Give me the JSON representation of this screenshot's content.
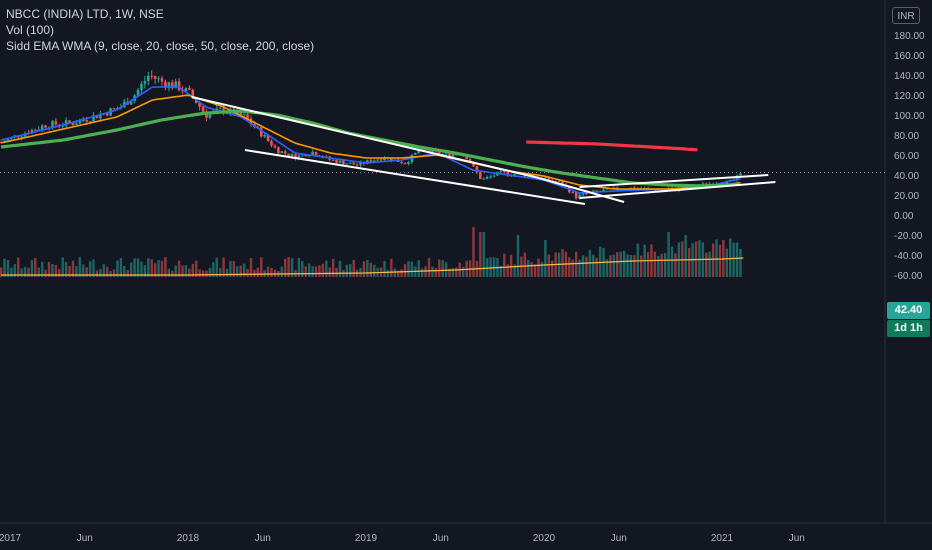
{
  "legend": {
    "symbol_line": "NBCC (INDIA) LTD, 1W, NSE",
    "vol_line": "Vol (100)",
    "indicator_line": "Sidd EMA WMA (9, close, 20, close, 50, close, 200, close)"
  },
  "currency_button": "INR",
  "last_price_label": "42.40",
  "timeframe_badge": "1d 1h",
  "colors": {
    "background": "#131722",
    "up": "#26a69a",
    "down": "#ef5350",
    "ema_fast": "#2962ff",
    "ema_mid": "#ff9800",
    "ema_slow": "#4caf50",
    "wma_long": "#f23645",
    "trendline": "#ffffff",
    "volume_ma": "#ffb74d"
  },
  "chart_data": {
    "type": "candlestick",
    "title": "NBCC (INDIA) LTD, 1W, NSE",
    "y_ticks": [
      180,
      160,
      140,
      120,
      100,
      80,
      60,
      40,
      20,
      0,
      -20,
      -40,
      -60
    ],
    "y_tick_labels": [
      "180.00",
      "160.00",
      "140.00",
      "120.00",
      "100.00",
      "80.00",
      "60.00",
      "40.00",
      "20.00",
      "0.00",
      "-20.00",
      "-40.00",
      "-60.00"
    ],
    "ylim": [
      -65,
      190
    ],
    "x_axis_labels": [
      "2017",
      "Jun",
      "2018",
      "Jun",
      "2019",
      "Jun",
      "2020",
      "Jun",
      "2021",
      "Jun"
    ],
    "x_label_dates": [
      2017.0,
      2017.42,
      2018.0,
      2018.42,
      2019.0,
      2019.42,
      2020.0,
      2020.42,
      2021.0,
      2021.42
    ],
    "xlim": [
      2016.95,
      2021.58
    ],
    "last_price": 42.4,
    "price_anchors": [
      [
        2016.95,
        73
      ],
      [
        2017.05,
        80
      ],
      [
        2017.2,
        90
      ],
      [
        2017.35,
        92
      ],
      [
        2017.5,
        100
      ],
      [
        2017.62,
        108
      ],
      [
        2017.7,
        120
      ],
      [
        2017.78,
        140
      ],
      [
        2017.87,
        132
      ],
      [
        2017.95,
        128
      ],
      [
        2018.02,
        120
      ],
      [
        2018.1,
        100
      ],
      [
        2018.2,
        105
      ],
      [
        2018.32,
        98
      ],
      [
        2018.42,
        80
      ],
      [
        2018.5,
        65
      ],
      [
        2018.6,
        58
      ],
      [
        2018.7,
        63
      ],
      [
        2018.8,
        55
      ],
      [
        2018.95,
        50
      ],
      [
        2019.1,
        58
      ],
      [
        2019.22,
        52
      ],
      [
        2019.3,
        65
      ],
      [
        2019.45,
        60
      ],
      [
        2019.55,
        62
      ],
      [
        2019.65,
        35
      ],
      [
        2019.75,
        42
      ],
      [
        2019.9,
        40
      ],
      [
        2020.0,
        36
      ],
      [
        2020.1,
        32
      ],
      [
        2020.18,
        18
      ],
      [
        2020.25,
        22
      ],
      [
        2020.35,
        25
      ],
      [
        2020.5,
        27
      ],
      [
        2020.65,
        25
      ],
      [
        2020.8,
        27
      ],
      [
        2020.95,
        32
      ],
      [
        2021.05,
        33
      ],
      [
        2021.12,
        42.4
      ]
    ],
    "series": [
      {
        "name": "EMA 9",
        "values": [
          [
            2016.95,
            75
          ],
          [
            2017.3,
            90
          ],
          [
            2017.6,
            105
          ],
          [
            2017.8,
            128
          ],
          [
            2017.95,
            128
          ],
          [
            2018.1,
            108
          ],
          [
            2018.3,
            98
          ],
          [
            2018.45,
            80
          ],
          [
            2018.6,
            62
          ],
          [
            2018.8,
            57
          ],
          [
            2019.0,
            52
          ],
          [
            2019.2,
            55
          ],
          [
            2019.4,
            62
          ],
          [
            2019.6,
            45
          ],
          [
            2019.8,
            40
          ],
          [
            2020.0,
            35
          ],
          [
            2020.2,
            22
          ],
          [
            2020.4,
            24
          ],
          [
            2020.7,
            26
          ],
          [
            2020.95,
            30
          ],
          [
            2021.12,
            37
          ]
        ]
      },
      {
        "name": "EMA 20",
        "values": [
          [
            2016.95,
            72
          ],
          [
            2017.3,
            86
          ],
          [
            2017.6,
            98
          ],
          [
            2017.8,
            115
          ],
          [
            2018.0,
            120
          ],
          [
            2018.2,
            108
          ],
          [
            2018.4,
            90
          ],
          [
            2018.6,
            72
          ],
          [
            2018.8,
            62
          ],
          [
            2019.0,
            57
          ],
          [
            2019.2,
            57
          ],
          [
            2019.4,
            60
          ],
          [
            2019.6,
            52
          ],
          [
            2019.8,
            44
          ],
          [
            2020.0,
            39
          ],
          [
            2020.2,
            30
          ],
          [
            2020.4,
            26
          ],
          [
            2020.7,
            26
          ],
          [
            2020.95,
            28
          ],
          [
            2021.12,
            33
          ]
        ]
      },
      {
        "name": "EMA 50",
        "values": [
          [
            2016.95,
            68
          ],
          [
            2017.3,
            75
          ],
          [
            2017.6,
            85
          ],
          [
            2017.85,
            95
          ],
          [
            2018.1,
            102
          ],
          [
            2018.3,
            104
          ],
          [
            2018.5,
            100
          ],
          [
            2018.7,
            92
          ],
          [
            2018.9,
            82
          ],
          [
            2019.1,
            75
          ],
          [
            2019.3,
            68
          ],
          [
            2019.5,
            62
          ],
          [
            2019.7,
            55
          ],
          [
            2019.9,
            48
          ],
          [
            2020.1,
            42
          ],
          [
            2020.3,
            37
          ],
          [
            2020.5,
            32
          ],
          [
            2020.7,
            30
          ],
          [
            2020.9,
            29
          ],
          [
            2021.12,
            31
          ]
        ]
      },
      {
        "name": "WMA 200",
        "values": [
          [
            2019.9,
            73
          ],
          [
            2020.1,
            72
          ],
          [
            2020.3,
            71
          ],
          [
            2020.5,
            69
          ],
          [
            2020.7,
            67
          ],
          [
            2020.88,
            65
          ]
        ]
      }
    ],
    "trendlines": [
      {
        "name": "falling-upper",
        "points": [
          [
            2018.02,
            118
          ],
          [
            2019.95,
            38
          ]
        ]
      },
      {
        "name": "falling-lower",
        "points": [
          [
            2018.32,
            65
          ],
          [
            2020.23,
            11
          ]
        ]
      },
      {
        "name": "rising-channel-upper",
        "points": [
          [
            2020.2,
            28
          ],
          [
            2021.26,
            40
          ]
        ]
      },
      {
        "name": "rising-channel-lower",
        "points": [
          [
            2020.2,
            17
          ],
          [
            2021.3,
            33
          ]
        ]
      },
      {
        "name": "falling-extension",
        "points": [
          [
            2019.95,
            38
          ],
          [
            2020.45,
            13
          ]
        ]
      }
    ],
    "volume_ma_anchors": [
      [
        2016.95,
        -60
      ],
      [
        2018.0,
        -60
      ],
      [
        2019.0,
        -58
      ],
      [
        2019.5,
        -55
      ],
      [
        2020.0,
        -50
      ],
      [
        2020.5,
        -46
      ],
      [
        2021.0,
        -44
      ],
      [
        2021.12,
        -43
      ]
    ],
    "volume_peaks": [
      [
        2019.6,
        -12
      ],
      [
        2019.65,
        -17
      ],
      [
        2019.85,
        -20
      ],
      [
        2020.0,
        -25
      ],
      [
        2020.7,
        -17
      ],
      [
        2020.8,
        -20
      ],
      [
        2021.0,
        -25
      ],
      [
        2021.1,
        -34
      ],
      [
        2021.12,
        0
      ]
    ]
  }
}
